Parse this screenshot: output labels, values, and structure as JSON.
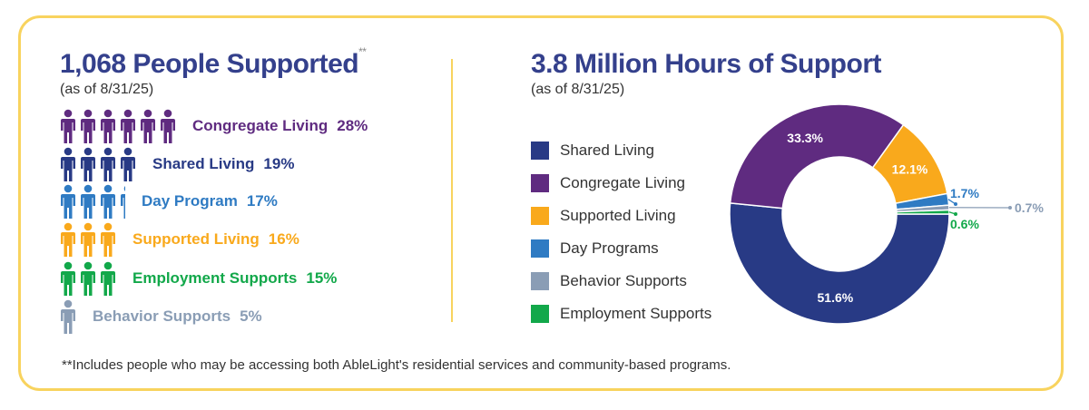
{
  "left": {
    "title": "1,068 People Supported",
    "title_mark": "**",
    "subtitle": "(as of 8/31/25)",
    "groups": [
      {
        "label": "Congregate Living",
        "pct": "28%",
        "icons": 6,
        "color": "#5f2b80"
      },
      {
        "label": "Shared Living",
        "pct": "19%",
        "icons": 4,
        "color": "#283a85"
      },
      {
        "label": "Day Program",
        "pct": "17%",
        "icons": 3.35,
        "color": "#2f7bc3"
      },
      {
        "label": "Supported Living",
        "pct": "16%",
        "icons": 3,
        "color": "#f9a91c"
      },
      {
        "label": "Employment Supports",
        "pct": "15%",
        "icons": 3,
        "color": "#12a84a"
      },
      {
        "label": "Behavior Supports",
        "pct": "5%",
        "icons": 1,
        "color": "#8a9db5"
      }
    ]
  },
  "right": {
    "title": "3.8 Million Hours of Support",
    "subtitle": "(as of 8/31/25)"
  },
  "chart_data": {
    "type": "pie",
    "donut": true,
    "legend_position": "left",
    "categories": [
      "Shared Living",
      "Congregate Living",
      "Supported Living",
      "Day Programs",
      "Behavior Supports",
      "Employment Supports"
    ],
    "values": [
      51.6,
      33.3,
      12.1,
      1.7,
      0.7,
      0.6
    ],
    "labels": [
      "51.6%",
      "33.3%",
      "12.1%",
      "1.7%",
      "0.7%",
      "0.6%"
    ],
    "colors": [
      "#283a85",
      "#5f2b80",
      "#f9a91c",
      "#2f7bc3",
      "#8a9db5",
      "#12a84a"
    ]
  },
  "footnote": "**Includes people who may be accessing both AbleLight's residential services and community-based programs."
}
